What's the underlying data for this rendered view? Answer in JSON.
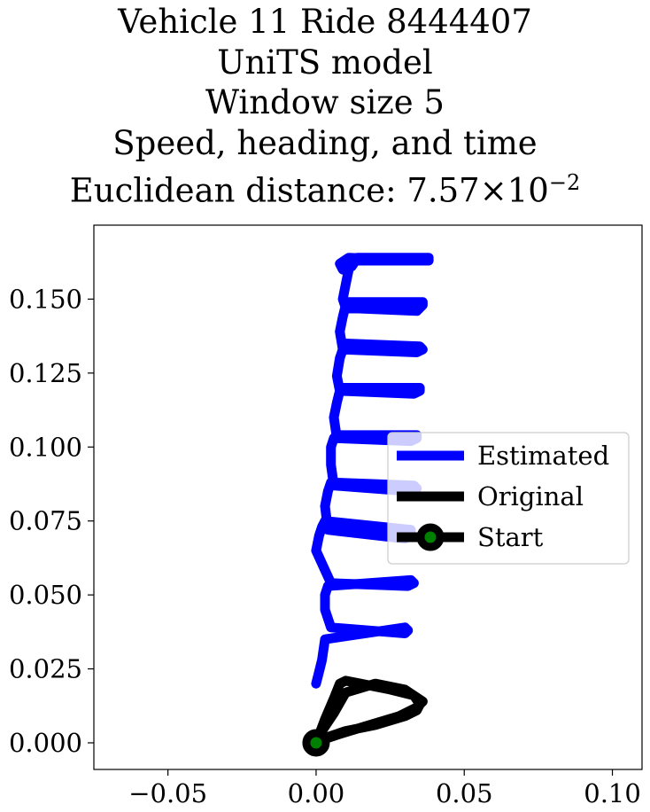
{
  "title": {
    "line1": "Vehicle 11 Ride 8444407",
    "line2": "UniTS model",
    "line3": "Window size 5",
    "line4": "Speed, heading, and time",
    "line5_prefix": "Euclidean distance: 7.57",
    "line5_times": "×",
    "line5_base": "10",
    "line5_exp": "−2"
  },
  "chart_data": {
    "type": "line",
    "title": "Vehicle 11 Ride 8444407 UniTS model Window size 5 Speed, heading, and time Euclidean distance: 7.57×10^-2",
    "xlabel": "",
    "ylabel": "",
    "xlim": [
      -0.075,
      0.11
    ],
    "ylim": [
      -0.009,
      0.175
    ],
    "x_ticks": [
      -0.05,
      0.0,
      0.05,
      0.1
    ],
    "x_tick_labels": [
      "−0.05",
      "0.00",
      "0.05",
      "0.10"
    ],
    "y_ticks": [
      0.0,
      0.025,
      0.05,
      0.075,
      0.1,
      0.125,
      0.15
    ],
    "y_tick_labels": [
      "0.000",
      "0.025",
      "0.050",
      "0.075",
      "0.100",
      "0.125",
      "0.150"
    ],
    "grid": false,
    "legend_position": "center-right",
    "series": [
      {
        "name": "Estimated",
        "color": "#0000ff",
        "x": [
          0.0,
          0.001,
          0.002,
          0.003,
          0.03,
          0.031,
          0.03,
          0.005,
          0.003,
          0.003,
          0.004,
          0.032,
          0.033,
          0.031,
          0.005,
          0.0,
          0.001,
          0.002,
          0.003,
          0.032,
          0.032,
          0.03,
          0.004,
          0.003,
          0.004,
          0.005,
          0.033,
          0.034,
          0.032,
          0.006,
          0.005,
          0.005,
          0.006,
          0.007,
          0.034,
          0.034,
          0.032,
          0.007,
          0.006,
          0.007,
          0.008,
          0.009,
          0.035,
          0.035,
          0.033,
          0.008,
          0.007,
          0.008,
          0.009,
          0.01,
          0.035,
          0.036,
          0.034,
          0.009,
          0.008,
          0.009,
          0.01,
          0.011,
          0.036,
          0.036,
          0.034,
          0.01,
          0.009,
          0.01,
          0.011,
          0.012,
          0.037,
          0.037,
          0.035,
          0.011,
          0.008,
          0.009,
          0.012,
          0.014,
          0.038,
          0.038,
          0.035
        ],
        "y": [
          0.02,
          0.024,
          0.028,
          0.035,
          0.039,
          0.038,
          0.037,
          0.039,
          0.045,
          0.05,
          0.053,
          0.055,
          0.054,
          0.053,
          0.054,
          0.065,
          0.07,
          0.073,
          0.075,
          0.072,
          0.07,
          0.069,
          0.072,
          0.08,
          0.085,
          0.088,
          0.087,
          0.086,
          0.085,
          0.087,
          0.094,
          0.1,
          0.103,
          0.104,
          0.104,
          0.103,
          0.102,
          0.103,
          0.11,
          0.115,
          0.119,
          0.12,
          0.12,
          0.119,
          0.118,
          0.119,
          0.124,
          0.13,
          0.133,
          0.135,
          0.134,
          0.133,
          0.132,
          0.133,
          0.139,
          0.144,
          0.148,
          0.149,
          0.149,
          0.148,
          0.146,
          0.147,
          0.15,
          0.155,
          0.16,
          0.163,
          0.163,
          0.164,
          0.163,
          0.164,
          0.162,
          0.16,
          0.161,
          0.164,
          0.164,
          0.163,
          0.163
        ]
      },
      {
        "name": "Original",
        "color": "#000000",
        "x": [
          0.0,
          0.003,
          0.006,
          0.008,
          0.01,
          0.015,
          0.025,
          0.033,
          0.035,
          0.034,
          0.03,
          0.02,
          0.01,
          0.004,
          0.0,
          0.002,
          0.006,
          0.01,
          0.02,
          0.03,
          0.036,
          0.034,
          0.028,
          0.018,
          0.008,
          0.002,
          0.0
        ],
        "y": [
          0.0,
          0.008,
          0.015,
          0.02,
          0.021,
          0.02,
          0.018,
          0.016,
          0.013,
          0.011,
          0.009,
          0.006,
          0.004,
          0.002,
          0.0,
          0.004,
          0.01,
          0.017,
          0.02,
          0.018,
          0.014,
          0.012,
          0.009,
          0.006,
          0.003,
          0.001,
          0.0
        ]
      },
      {
        "name": "Start",
        "color": "#000000",
        "fill": "#008000",
        "x": [
          0.0
        ],
        "y": [
          0.0
        ]
      }
    ]
  },
  "legend": {
    "items": [
      {
        "label": "Estimated",
        "color": "#0000ff"
      },
      {
        "label": "Original",
        "color": "#000000"
      },
      {
        "label": "Start",
        "color": "#000000",
        "marker_fill": "#008000"
      }
    ]
  }
}
